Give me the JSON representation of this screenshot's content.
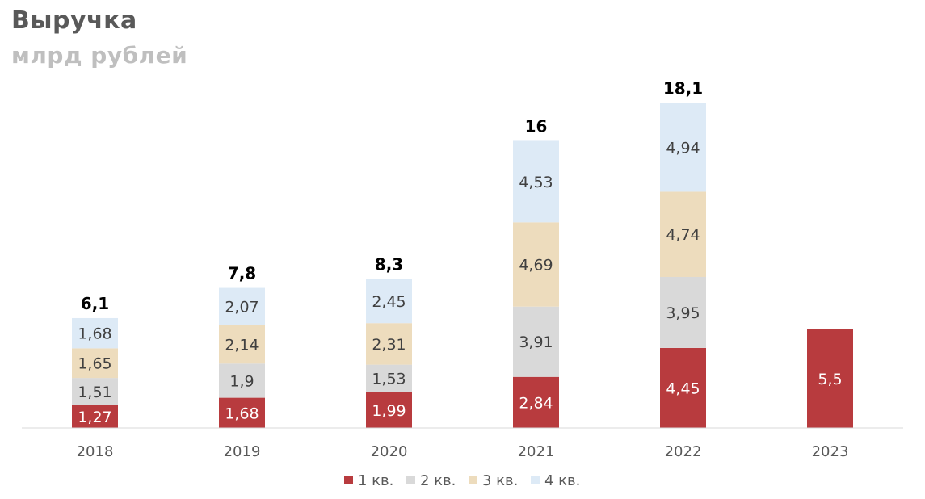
{
  "header": {
    "title": "Выручка",
    "subtitle": "млрд рублей"
  },
  "chart_data": {
    "type": "bar",
    "stacked": true,
    "title": "Выручка",
    "subtitle": "млрд рублей",
    "categories": [
      "2018",
      "2019",
      "2020",
      "2021",
      "2022",
      "2023"
    ],
    "series": [
      {
        "name": "1 кв.",
        "color": "#b83b3e",
        "label_color": "#ffffff",
        "values": [
          1.27,
          1.68,
          1.99,
          2.84,
          4.45,
          5.5
        ],
        "labels": [
          "1,27",
          "1,68",
          "1,99",
          "2,84",
          "4,45",
          "5,5"
        ]
      },
      {
        "name": "2 кв.",
        "color": "#d9d9d9",
        "label_color": "#404040",
        "values": [
          1.51,
          1.9,
          1.53,
          3.91,
          3.95,
          null
        ],
        "labels": [
          "1,51",
          "1,9",
          "1,53",
          "3,91",
          "3,95",
          ""
        ]
      },
      {
        "name": "3 кв.",
        "color": "#eddcbd",
        "label_color": "#404040",
        "values": [
          1.65,
          2.14,
          2.31,
          4.69,
          4.74,
          null
        ],
        "labels": [
          "1,65",
          "2,14",
          "2,31",
          "4,69",
          "4,74",
          ""
        ]
      },
      {
        "name": "4 кв.",
        "color": "#ddeaf6",
        "label_color": "#404040",
        "values": [
          1.68,
          2.07,
          2.45,
          4.53,
          4.94,
          null
        ],
        "labels": [
          "1,68",
          "2,07",
          "2,45",
          "4,53",
          "4,94",
          ""
        ]
      }
    ],
    "totals": [
      6.1,
      7.8,
      8.3,
      16,
      18.1,
      null
    ],
    "total_labels": [
      "6,1",
      "7,8",
      "8,3",
      "16",
      "18,1",
      ""
    ],
    "ylim": [
      0,
      18.1
    ],
    "xlabel": "",
    "ylabel": "",
    "grid": false,
    "legend": "bottom"
  }
}
